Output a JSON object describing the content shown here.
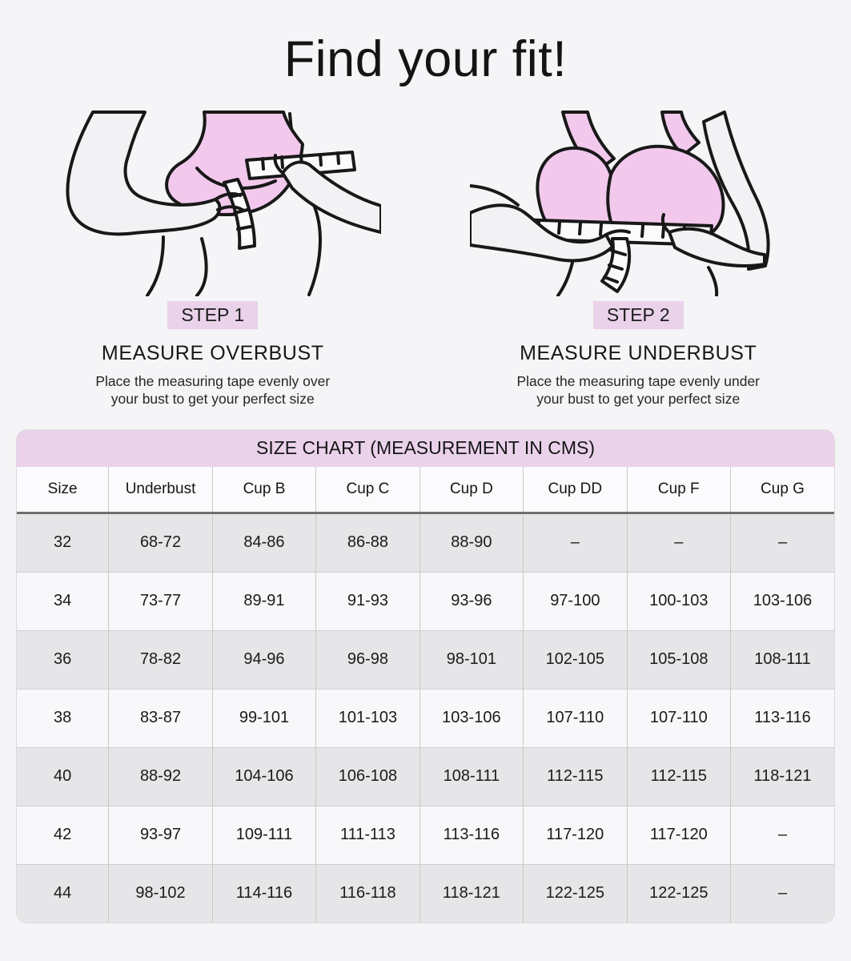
{
  "page": {
    "title": "Find your fit!",
    "colors": {
      "background": "#f5f4f6",
      "accent_pink": "#ead2ea",
      "bra_pink": "#f2c8ec",
      "skin": "#f2f1f3",
      "row_shaded": "#e6e5e7",
      "row_plain": "#f8f7f9",
      "header_divider": "#6e6e6e",
      "cell_border": "#c9c9c9",
      "text": "#1b1b1b"
    }
  },
  "steps": [
    {
      "badge": "STEP 1",
      "heading": "MEASURE OVERBUST",
      "description_line1": "Place the measuring tape evenly over",
      "description_line2": "your bust to get your perfect size",
      "illustration": "measure-overbust-illustration"
    },
    {
      "badge": "STEP 2",
      "heading": "MEASURE UNDERBUST",
      "description_line1": "Place the measuring tape evenly under",
      "description_line2": "your bust to get your perfect size",
      "illustration": "measure-underbust-illustration"
    }
  ],
  "size_chart": {
    "title": "SIZE CHART (MEASUREMENT IN CMS)",
    "columns": [
      "Size",
      "Underbust",
      "Cup B",
      "Cup C",
      "Cup D",
      "Cup DD",
      "Cup F",
      "Cup G"
    ],
    "rows": [
      [
        "32",
        "68-72",
        "84-86",
        "86-88",
        "88-90",
        "–",
        "–",
        "–"
      ],
      [
        "34",
        "73-77",
        "89-91",
        "91-93",
        "93-96",
        "97-100",
        "100-103",
        "103-106"
      ],
      [
        "36",
        "78-82",
        "94-96",
        "96-98",
        "98-101",
        "102-105",
        "105-108",
        "108-111"
      ],
      [
        "38",
        "83-87",
        "99-101",
        "101-103",
        "103-106",
        "107-110",
        "107-110",
        "113-116"
      ],
      [
        "40",
        "88-92",
        "104-106",
        "106-108",
        "108-111",
        "112-115",
        "112-115",
        "118-121"
      ],
      [
        "42",
        "93-97",
        "109-111",
        "111-113",
        "113-116",
        "117-120",
        "117-120",
        "–"
      ],
      [
        "44",
        "98-102",
        "114-116",
        "116-118",
        "118-121",
        "122-125",
        "122-125",
        "–"
      ]
    ]
  }
}
